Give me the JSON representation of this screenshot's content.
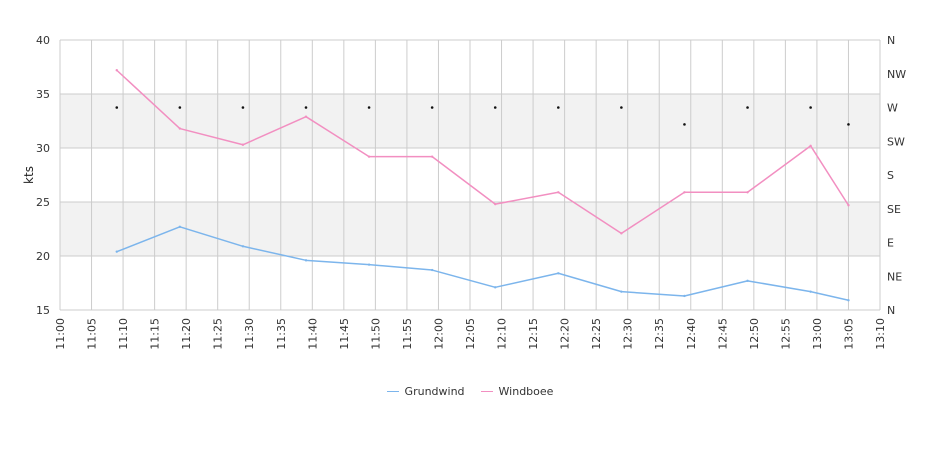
{
  "chart_data": {
    "type": "line",
    "ylabel": "kts",
    "ylim": [
      15,
      40
    ],
    "yticks": [
      "15",
      "20",
      "25",
      "30",
      "35",
      "40"
    ],
    "xlim_minutes": [
      0,
      130
    ],
    "xticks": [
      "11:00",
      "11:05",
      "11:10",
      "11:15",
      "11:20",
      "11:25",
      "11:30",
      "11:35",
      "11:40",
      "11:45",
      "11:50",
      "11:55",
      "12:00",
      "12:05",
      "12:10",
      "12:15",
      "12:20",
      "12:25",
      "12:30",
      "12:35",
      "12:40",
      "12:45",
      "12:50",
      "12:55",
      "13:00",
      "13:05",
      "13:10"
    ],
    "x": [
      "11:09",
      "11:19",
      "11:29",
      "11:39",
      "11:49",
      "11:59",
      "12:09",
      "12:19",
      "12:29",
      "12:39",
      "12:49",
      "12:59",
      "13:05"
    ],
    "series": [
      {
        "name": "Grundwind",
        "color": "#7cb5ec",
        "values": [
          20.4,
          22.7,
          20.9,
          19.6,
          19.2,
          18.7,
          17.1,
          18.4,
          16.7,
          16.3,
          17.7,
          16.7,
          15.9
        ]
      },
      {
        "name": "Windboee",
        "color": "#f28fc1",
        "values": [
          37.2,
          31.8,
          30.3,
          32.9,
          29.2,
          29.2,
          24.8,
          25.9,
          22.1,
          25.9,
          25.9,
          30.2,
          24.7
        ]
      }
    ],
    "direction_axis": {
      "labels": [
        "N",
        "NE",
        "E",
        "SE",
        "S",
        "SW",
        "W",
        "NW",
        "N"
      ],
      "degrees": [
        0,
        45,
        90,
        135,
        180,
        225,
        270,
        315,
        360
      ]
    },
    "direction_points": [
      270,
      270,
      270,
      270,
      270,
      270,
      270,
      270,
      270,
      247.5,
      270,
      270,
      247.5
    ],
    "legend_position": "bottom-center",
    "grid": true,
    "band_color": "#f2f2f2",
    "grid_color": "#cccccc"
  }
}
